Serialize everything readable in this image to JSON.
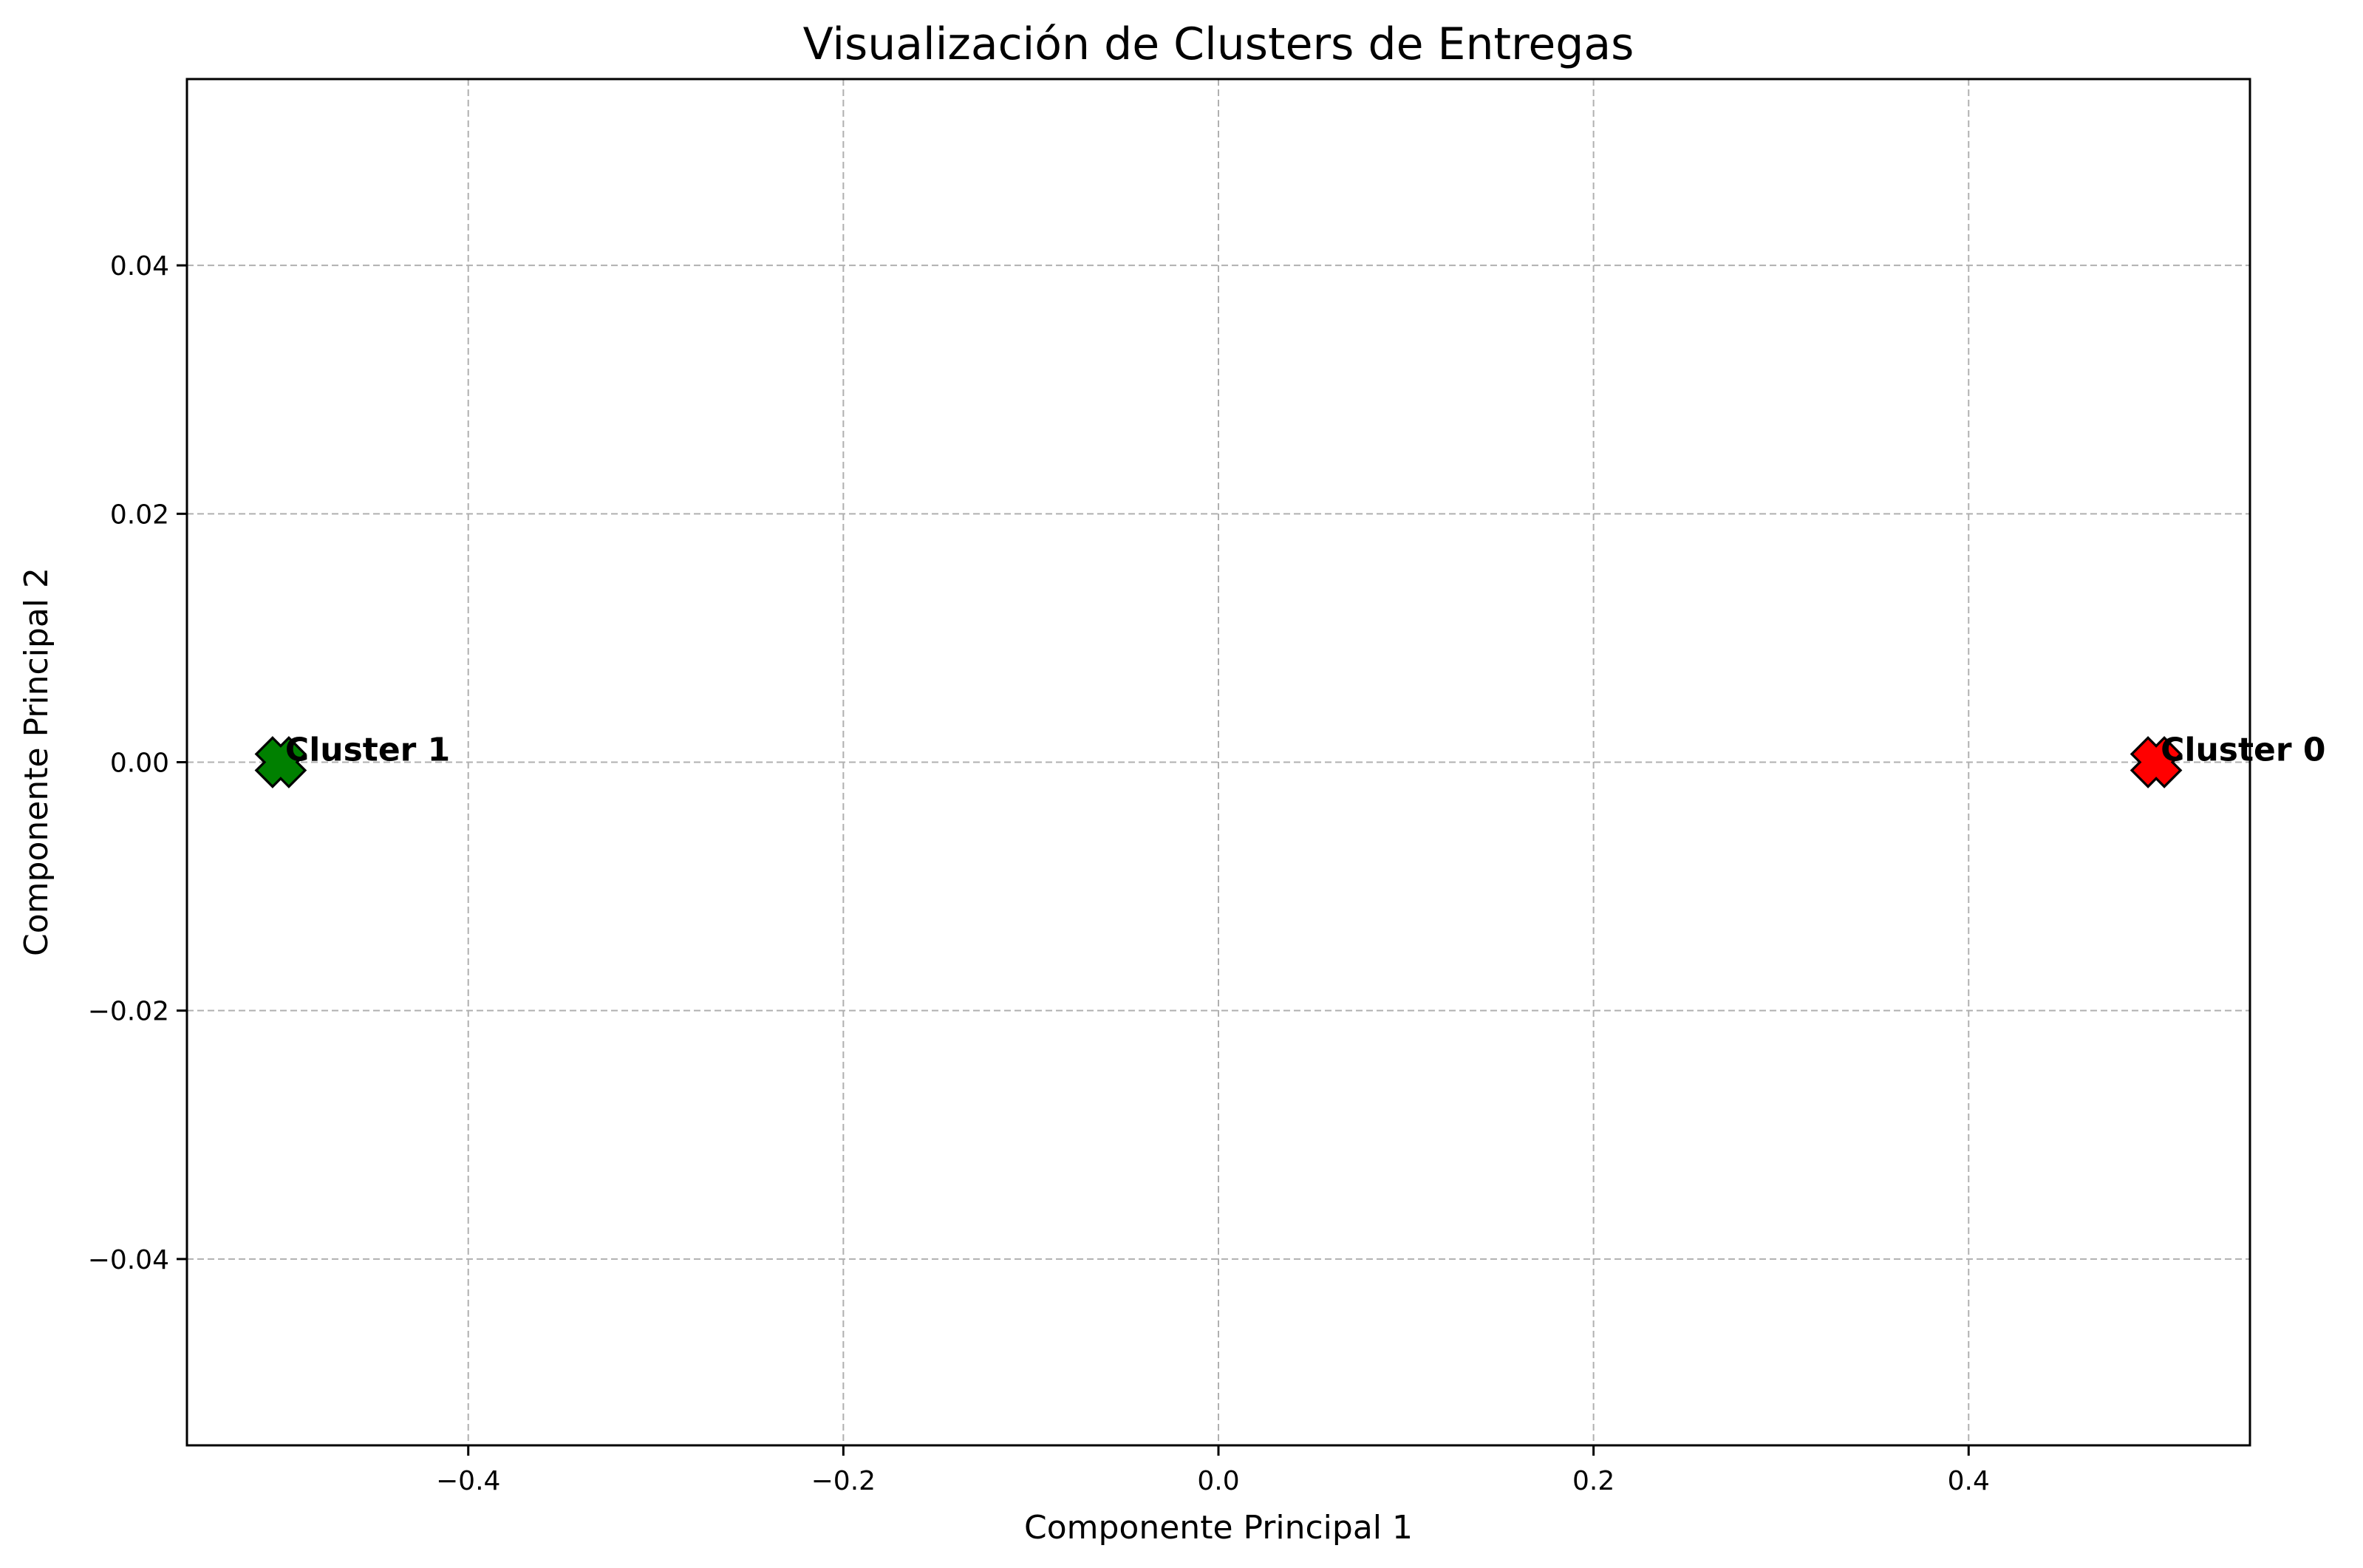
{
  "chart_data": {
    "type": "scatter",
    "title": "Visualización de Clusters de Entregas",
    "xlabel": "Componente Principal 1",
    "ylabel": "Componente Principal 2",
    "xlim": [
      -0.55,
      0.55
    ],
    "ylim": [
      -0.055,
      0.055
    ],
    "grid": true,
    "x_ticks": [
      -0.4,
      -0.2,
      0.0,
      0.2,
      0.4
    ],
    "x_tick_labels": [
      "−0.4",
      "−0.2",
      "0.0",
      "0.2",
      "0.4"
    ],
    "y_ticks": [
      -0.04,
      -0.02,
      0.0,
      0.02,
      0.04
    ],
    "y_tick_labels": [
      "−0.04",
      "−0.02",
      "0.00",
      "0.02",
      "0.04"
    ],
    "points": [
      {
        "label": "Cluster 1",
        "x": -0.5,
        "y": 0.0,
        "color": "#008000"
      },
      {
        "label": "Cluster 0",
        "x": 0.5,
        "y": 0.0,
        "color": "#ff0000"
      }
    ],
    "marker": "X",
    "marker_edge_color": "#000000",
    "grid_color": "#b0b0b0"
  }
}
